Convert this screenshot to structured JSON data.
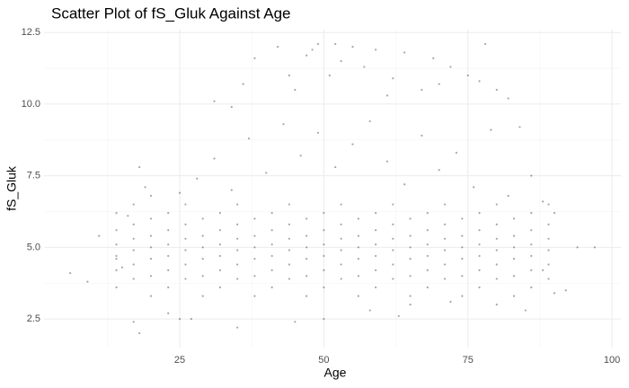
{
  "chart_data": {
    "type": "scatter",
    "title": "Scatter Plot of fS_Gluk Against Age",
    "x_label": "Age",
    "y_label": "fS_Gluk",
    "color": "#000000",
    "xlim": [
      1.45,
      101.55
    ],
    "ylim": [
      1.5,
      12.6
    ],
    "xticks": [
      25,
      50,
      75,
      100
    ],
    "yticks": [
      2.5,
      {
        "value": 5,
        "label": "5.0"
      },
      7.5,
      {
        "value": 10,
        "label": "10.0"
      },
      12.5
    ],
    "xminor": [
      12.5,
      37.5,
      62.5,
      87.5
    ],
    "yminor": [
      3.75,
      6.25,
      8.75,
      11.25
    ],
    "grid": true,
    "x": [
      14,
      14,
      14,
      14,
      14,
      14,
      17,
      17,
      17,
      17,
      17,
      17,
      20,
      20,
      20,
      20,
      20,
      20,
      23,
      23,
      23,
      23,
      23,
      23,
      26,
      26,
      26,
      26,
      26,
      26,
      29,
      29,
      29,
      29,
      29,
      29,
      32,
      32,
      32,
      32,
      32,
      32,
      35,
      35,
      35,
      35,
      35,
      35,
      38,
      38,
      38,
      38,
      38,
      38,
      41,
      41,
      41,
      41,
      41,
      41,
      44,
      44,
      44,
      44,
      44,
      44,
      47,
      47,
      47,
      47,
      47,
      47,
      50,
      50,
      50,
      50,
      50,
      50,
      53,
      53,
      53,
      53,
      53,
      53,
      56,
      56,
      56,
      56,
      56,
      56,
      59,
      59,
      59,
      59,
      59,
      59,
      62,
      62,
      62,
      62,
      62,
      62,
      65,
      65,
      65,
      65,
      65,
      65,
      68,
      68,
      68,
      68,
      68,
      68,
      71,
      71,
      71,
      71,
      71,
      71,
      74,
      74,
      74,
      74,
      74,
      74,
      77,
      77,
      77,
      77,
      77,
      77,
      80,
      80,
      80,
      80,
      80,
      80,
      83,
      83,
      83,
      83,
      83,
      83,
      86,
      86,
      86,
      86,
      86,
      86,
      89,
      89,
      89,
      89,
      89,
      89,
      25,
      28,
      31,
      34,
      37,
      40,
      43,
      46,
      49,
      52,
      55,
      58,
      61,
      64,
      67,
      70,
      73,
      76,
      79,
      82,
      6,
      9,
      11,
      14,
      15,
      16,
      18,
      17,
      18,
      19,
      20,
      23,
      25,
      27,
      31,
      34,
      36,
      38,
      42,
      44,
      45,
      47,
      48,
      49,
      51,
      52,
      53,
      55,
      57,
      59,
      61,
      62,
      64,
      67,
      69,
      70,
      72,
      75,
      77,
      78,
      80,
      82,
      84,
      86,
      88,
      90,
      92,
      94,
      97,
      35,
      45,
      50,
      58,
      63,
      65,
      72,
      80,
      85,
      90,
      88
    ],
    "y": [
      3.6,
      4.2,
      4.7,
      5.1,
      5.6,
      6.2,
      3.9,
      4.4,
      4.9,
      5.3,
      5.8,
      6.5,
      3.3,
      4.0,
      4.6,
      5.0,
      5.4,
      6.0,
      3.6,
      4.2,
      4.7,
      5.1,
      5.6,
      6.2,
      3.9,
      4.4,
      4.9,
      5.3,
      5.8,
      6.5,
      3.3,
      4.0,
      4.6,
      5.0,
      5.4,
      6.0,
      3.6,
      4.2,
      4.7,
      5.1,
      5.6,
      6.2,
      3.9,
      4.4,
      4.9,
      5.3,
      5.8,
      6.5,
      3.3,
      4.0,
      4.6,
      5.0,
      5.4,
      6.0,
      3.6,
      4.2,
      4.7,
      5.1,
      5.6,
      6.2,
      3.9,
      4.4,
      4.9,
      5.3,
      5.8,
      6.5,
      3.3,
      4.0,
      4.6,
      5.0,
      5.4,
      6.0,
      3.6,
      4.2,
      4.7,
      5.1,
      5.6,
      6.2,
      3.9,
      4.4,
      4.9,
      5.3,
      5.8,
      6.5,
      3.3,
      4.0,
      4.6,
      5.0,
      5.4,
      6.0,
      3.6,
      4.2,
      4.7,
      5.1,
      5.6,
      6.2,
      3.9,
      4.4,
      4.9,
      5.3,
      5.8,
      6.5,
      3.3,
      4.0,
      4.6,
      5.0,
      5.4,
      6.0,
      3.6,
      4.2,
      4.7,
      5.1,
      5.6,
      6.2,
      3.9,
      4.4,
      4.9,
      5.3,
      5.8,
      6.5,
      3.3,
      4.0,
      4.6,
      5.0,
      5.4,
      6.0,
      3.6,
      4.2,
      4.7,
      5.1,
      5.6,
      6.2,
      3.9,
      4.4,
      4.9,
      5.3,
      5.8,
      6.5,
      3.3,
      4.0,
      4.6,
      5.0,
      5.4,
      6.0,
      3.6,
      4.2,
      4.7,
      5.1,
      5.6,
      6.2,
      3.9,
      4.4,
      4.9,
      5.3,
      5.8,
      6.5,
      6.9,
      7.4,
      8.1,
      7.0,
      8.8,
      7.6,
      9.3,
      8.2,
      9.0,
      7.8,
      8.6,
      9.4,
      8.0,
      7.2,
      8.9,
      7.7,
      8.3,
      7.1,
      9.1,
      6.8,
      4.1,
      3.8,
      5.4,
      4.6,
      4.3,
      6.1,
      2.0,
      2.4,
      7.8,
      7.1,
      6.8,
      2.7,
      2.5,
      2.5,
      10.1,
      9.9,
      10.7,
      11.6,
      12.0,
      11.0,
      10.5,
      11.7,
      11.9,
      12.1,
      11.0,
      12.1,
      11.5,
      12.0,
      11.3,
      11.9,
      10.3,
      10.9,
      11.8,
      10.5,
      11.6,
      10.7,
      11.3,
      11.0,
      10.8,
      12.1,
      10.5,
      10.2,
      9.2,
      7.5,
      6.6,
      6.2,
      3.5,
      5.0,
      5.0,
      2.2,
      2.4,
      2.5,
      2.8,
      2.6,
      3.0,
      3.1,
      3.0,
      2.8,
      3.4,
      4.2
    ]
  }
}
